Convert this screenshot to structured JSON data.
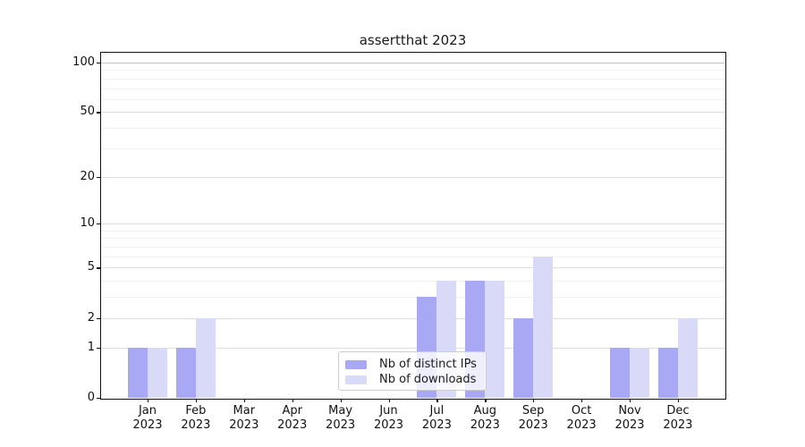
{
  "title": "assertthat 2023",
  "legend": {
    "items": [
      {
        "label": "Nb of distinct IPs",
        "color": "#a8a8f4"
      },
      {
        "label": "Nb of downloads",
        "color": "#d9d9f8"
      }
    ]
  },
  "chart_data": {
    "type": "bar",
    "title": "assertthat 2023",
    "months": [
      "Jan",
      "Feb",
      "Mar",
      "Apr",
      "May",
      "Jun",
      "Jul",
      "Aug",
      "Sep",
      "Oct",
      "Nov",
      "Dec"
    ],
    "x_tick_year": "2023",
    "series": [
      {
        "name": "Nb of distinct IPs",
        "color": "#a8a8f4",
        "values": [
          1,
          1,
          0,
          0,
          0,
          0,
          3,
          4,
          2,
          0,
          1,
          1
        ]
      },
      {
        "name": "Nb of downloads",
        "color": "#d9d9f8",
        "values": [
          1,
          2,
          0,
          0,
          0,
          0,
          4,
          4,
          6,
          0,
          1,
          2
        ]
      }
    ],
    "yscale": "log1p",
    "ylim": [
      0,
      100
    ],
    "y_ticks": [
      0,
      1,
      2,
      5,
      10,
      20,
      50,
      100
    ],
    "y_minor_ticks": [
      3,
      4,
      6,
      7,
      8,
      9,
      30,
      40,
      60,
      70,
      80,
      90
    ],
    "grid": true,
    "legend_position": "lower center"
  },
  "colors": {
    "gridline_major": "#dddddd",
    "gridline_top": "#c4c4c4",
    "gridline_minor": "#f1f1f1",
    "axis": "#111111"
  }
}
